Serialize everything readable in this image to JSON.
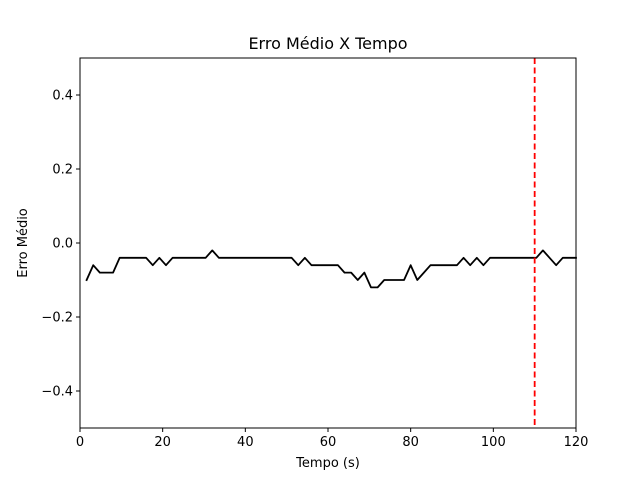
{
  "chart_data": {
    "type": "line",
    "title": "Erro Médio X Tempo",
    "xlabel": "Tempo (s)",
    "ylabel": "Erro Médio",
    "xlim": [
      0,
      120
    ],
    "ylim": [
      -0.5,
      0.5
    ],
    "grid": false,
    "x_ticks": [
      0,
      20,
      40,
      60,
      80,
      100,
      120
    ],
    "x_tick_labels": [
      "0",
      "20",
      "40",
      "60",
      "80",
      "100",
      "120"
    ],
    "y_ticks": [
      -0.4,
      -0.2,
      0.0,
      0.2,
      0.4
    ],
    "y_tick_labels": [
      "−0.4",
      "−0.2",
      "0.0",
      "0.2",
      "0.4"
    ],
    "series": [
      {
        "color": "#000000",
        "style": "solid",
        "x": [
          1.6,
          3.2,
          4.8,
          6.4,
          8.0,
          9.6,
          11.2,
          12.8,
          14.4,
          16.0,
          17.6,
          19.2,
          20.8,
          22.4,
          24.0,
          25.6,
          27.2,
          28.8,
          30.4,
          32.0,
          33.6,
          35.2,
          36.8,
          38.4,
          40.0,
          41.6,
          43.2,
          44.8,
          46.4,
          48.0,
          49.6,
          51.2,
          52.8,
          54.4,
          56.0,
          57.6,
          59.2,
          60.8,
          62.4,
          64.0,
          65.6,
          67.2,
          68.8,
          70.4,
          72.0,
          73.6,
          75.2,
          76.8,
          78.4,
          80.0,
          81.6,
          83.2,
          84.8,
          86.4,
          88.0,
          89.6,
          91.2,
          92.8,
          94.4,
          96.0,
          97.6,
          99.2,
          100.8,
          102.4,
          104.0,
          105.6,
          107.2,
          108.8,
          110.4,
          112.0,
          113.6,
          115.2,
          116.8,
          118.4,
          120.0
        ],
        "y": [
          -0.1,
          -0.06,
          -0.08,
          -0.08,
          -0.08,
          -0.04,
          -0.04,
          -0.04,
          -0.04,
          -0.04,
          -0.06,
          -0.04,
          -0.06,
          -0.04,
          -0.04,
          -0.04,
          -0.04,
          -0.04,
          -0.04,
          -0.02,
          -0.04,
          -0.04,
          -0.04,
          -0.04,
          -0.04,
          -0.04,
          -0.04,
          -0.04,
          -0.04,
          -0.04,
          -0.04,
          -0.04,
          -0.06,
          -0.04,
          -0.06,
          -0.06,
          -0.06,
          -0.06,
          -0.06,
          -0.08,
          -0.08,
          -0.1,
          -0.08,
          -0.12,
          -0.12,
          -0.1,
          -0.1,
          -0.1,
          -0.1,
          -0.06,
          -0.1,
          -0.08,
          -0.06,
          -0.06,
          -0.06,
          -0.06,
          -0.06,
          -0.04,
          -0.06,
          -0.04,
          -0.06,
          -0.04,
          -0.04,
          -0.04,
          -0.04,
          -0.04,
          -0.04,
          -0.04,
          -0.04,
          -0.02,
          -0.04,
          -0.06,
          -0.04,
          -0.04,
          -0.04
        ]
      }
    ],
    "vline": {
      "x": 110,
      "color": "#ff0000",
      "style": "dashed"
    }
  }
}
